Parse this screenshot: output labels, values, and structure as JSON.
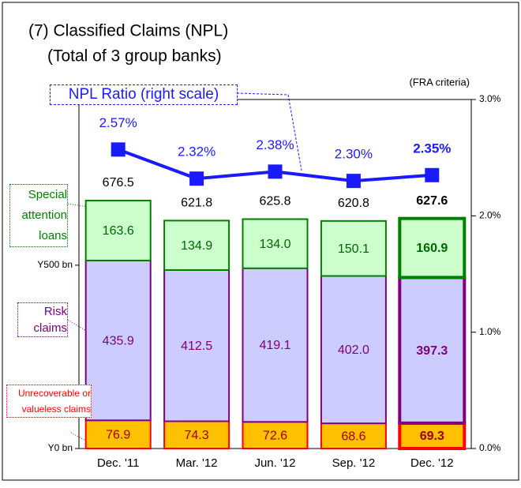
{
  "chart_data": {
    "type": "bar",
    "title": "(7) Classified Claims (NPL)",
    "subtitle": "(Total of 3 group banks)",
    "annotation": "(FRA criteria)",
    "categories": [
      "Dec. '11",
      "Mar. '12",
      "Jun. '12",
      "Sep. '12",
      "Dec. '12"
    ],
    "series": [
      {
        "name": "Unrecoverable or valueless claims",
        "color": "#ffc000",
        "border": "#ff0000",
        "text_color": "#a00000",
        "values": [
          76.9,
          74.3,
          72.6,
          68.6,
          69.3
        ]
      },
      {
        "name": "Risk claims",
        "color": "#ccccff",
        "border": "#800080",
        "text_color": "#800080",
        "values": [
          435.9,
          412.5,
          419.1,
          402.0,
          397.3
        ],
        "value_labels": [
          "435.9",
          "412.5",
          "419.1",
          "402.0",
          "397.3"
        ]
      },
      {
        "name": "Special attention loans",
        "color": "#ccffcc",
        "border": "#008000",
        "text_color": "#006600",
        "values": [
          163.6,
          134.9,
          134.0,
          150.1,
          160.9
        ],
        "value_labels": [
          "163.6",
          "134.9",
          "134.0",
          "150.1",
          "160.9"
        ]
      },
      {
        "name": "NPL Ratio (right scale)",
        "type": "line",
        "axis": "y2",
        "color": "#1a1aff",
        "values": [
          2.57,
          2.32,
          2.38,
          2.3,
          2.35
        ],
        "value_labels": [
          "2.57%",
          "2.32%",
          "2.38%",
          "2.30%",
          "2.35%"
        ]
      }
    ],
    "totals": [
      676.5,
      621.8,
      625.8,
      620.8,
      627.6
    ],
    "ylim": [
      0,
      952
    ],
    "yticks": [
      {
        "value": 0,
        "label": "Y0 bn"
      },
      {
        "value": 500,
        "label": "Y500 bn"
      }
    ],
    "y2lim": [
      0,
      3
    ],
    "y2ticks": [
      {
        "value": 0,
        "label": "0.0%"
      },
      {
        "value": 1,
        "label": "1.0%"
      },
      {
        "value": 2,
        "label": "2.0%"
      },
      {
        "value": 3,
        "label": "3.0%"
      }
    ]
  }
}
